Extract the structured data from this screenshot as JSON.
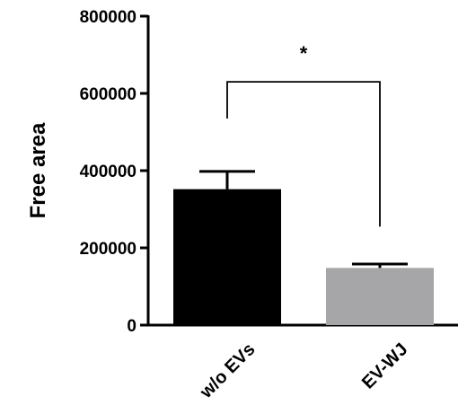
{
  "chart_data": {
    "type": "bar",
    "categories": [
      "w/o EVs",
      "EV-WJ"
    ],
    "values": [
      352000,
      148000
    ],
    "errors": [
      46000,
      10000
    ],
    "bar_colors": [
      "#000000",
      "#a6a6a8"
    ],
    "ylabel": "Free area",
    "xlabel": "",
    "ylim": [
      0,
      800000
    ],
    "yticks": [
      0,
      200000,
      400000,
      600000,
      800000
    ],
    "yticks_labels": [
      "0",
      "200000",
      "400000",
      "600000",
      "800000"
    ],
    "grid": false,
    "significance": {
      "label": "*",
      "between": [
        0,
        1
      ],
      "y": 630000,
      "left_drop_to": 535000,
      "right_drop_to": 255000
    }
  }
}
